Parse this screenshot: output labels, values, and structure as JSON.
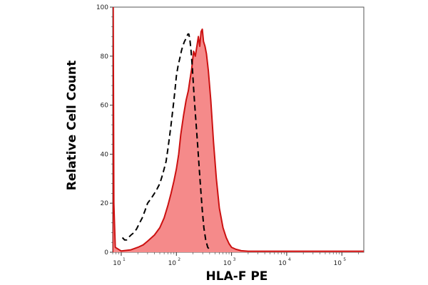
{
  "chart_data": {
    "type": "area",
    "title": "",
    "xlabel": "HLA-F PE",
    "ylabel": "Relative Cell Count",
    "x_scale": "log",
    "xlim": [
      7,
      250000
    ],
    "ylim": [
      0,
      100
    ],
    "grid": false,
    "y_ticks": [
      0,
      20,
      40,
      60,
      80,
      100
    ],
    "x_ticks": [
      {
        "value": 10,
        "base": "10",
        "exp": "1"
      },
      {
        "value": 100,
        "base": "10",
        "exp": "2"
      },
      {
        "value": 1000,
        "base": "10",
        "exp": "3"
      },
      {
        "value": 10000,
        "base": "10",
        "exp": "4"
      },
      {
        "value": 100000,
        "base": "10",
        "exp": "5"
      }
    ],
    "series": [
      {
        "style": "filled-red",
        "color": "#cc1111",
        "fill": "#f58a8a",
        "points": [
          [
            7,
            0
          ],
          [
            7.15,
            100
          ],
          [
            7.35,
            20
          ],
          [
            7.8,
            2
          ],
          [
            10,
            0.5
          ],
          [
            15,
            1
          ],
          [
            20,
            2
          ],
          [
            25,
            3
          ],
          [
            30,
            4.5
          ],
          [
            40,
            7
          ],
          [
            50,
            10
          ],
          [
            60,
            14
          ],
          [
            70,
            19
          ],
          [
            80,
            24
          ],
          [
            90,
            29
          ],
          [
            100,
            34
          ],
          [
            110,
            40
          ],
          [
            120,
            48
          ],
          [
            135,
            56
          ],
          [
            150,
            62
          ],
          [
            165,
            66
          ],
          [
            175,
            70
          ],
          [
            190,
            75
          ],
          [
            205,
            82
          ],
          [
            220,
            80
          ],
          [
            235,
            84
          ],
          [
            250,
            88
          ],
          [
            265,
            84
          ],
          [
            280,
            90
          ],
          [
            295,
            91
          ],
          [
            310,
            86
          ],
          [
            330,
            84
          ],
          [
            350,
            81
          ],
          [
            380,
            74
          ],
          [
            420,
            62
          ],
          [
            470,
            45
          ],
          [
            530,
            30
          ],
          [
            600,
            18
          ],
          [
            700,
            10
          ],
          [
            800,
            6
          ],
          [
            900,
            3.5
          ],
          [
            1000,
            2
          ],
          [
            1200,
            1.2
          ],
          [
            1500,
            0.6
          ],
          [
            2000,
            0.4
          ],
          [
            5000,
            0.4
          ],
          [
            20000,
            0.4
          ],
          [
            100000,
            0.4
          ],
          [
            250000,
            0.4
          ]
        ]
      },
      {
        "style": "dashed-black",
        "color": "#000000",
        "points": [
          [
            10.5,
            6
          ],
          [
            11.5,
            5
          ],
          [
            12.5,
            5
          ],
          [
            13.5,
            6
          ],
          [
            15,
            7
          ],
          [
            17,
            8
          ],
          [
            19,
            9.5
          ],
          [
            21,
            11.5
          ],
          [
            24,
            14
          ],
          [
            27,
            17
          ],
          [
            30,
            20
          ],
          [
            35,
            22
          ],
          [
            40,
            24
          ],
          [
            45,
            26
          ],
          [
            50,
            28
          ],
          [
            55,
            31
          ],
          [
            60,
            34
          ],
          [
            65,
            37
          ],
          [
            70,
            42
          ],
          [
            75,
            47
          ],
          [
            80,
            52
          ],
          [
            85,
            57
          ],
          [
            90,
            62
          ],
          [
            95,
            67
          ],
          [
            100,
            72
          ],
          [
            107,
            76
          ],
          [
            115,
            79
          ],
          [
            123,
            82
          ],
          [
            130,
            84
          ],
          [
            140,
            86
          ],
          [
            148,
            87
          ],
          [
            155,
            88
          ],
          [
            162,
            89
          ],
          [
            168,
            89
          ],
          [
            175,
            87
          ],
          [
            185,
            82
          ],
          [
            195,
            75
          ],
          [
            205,
            67
          ],
          [
            215,
            60
          ],
          [
            228,
            52
          ],
          [
            242,
            44
          ],
          [
            258,
            35
          ],
          [
            275,
            26
          ],
          [
            295,
            17
          ],
          [
            315,
            10
          ],
          [
            340,
            5
          ],
          [
            370,
            2
          ],
          [
            420,
            0.5
          ]
        ]
      }
    ]
  }
}
